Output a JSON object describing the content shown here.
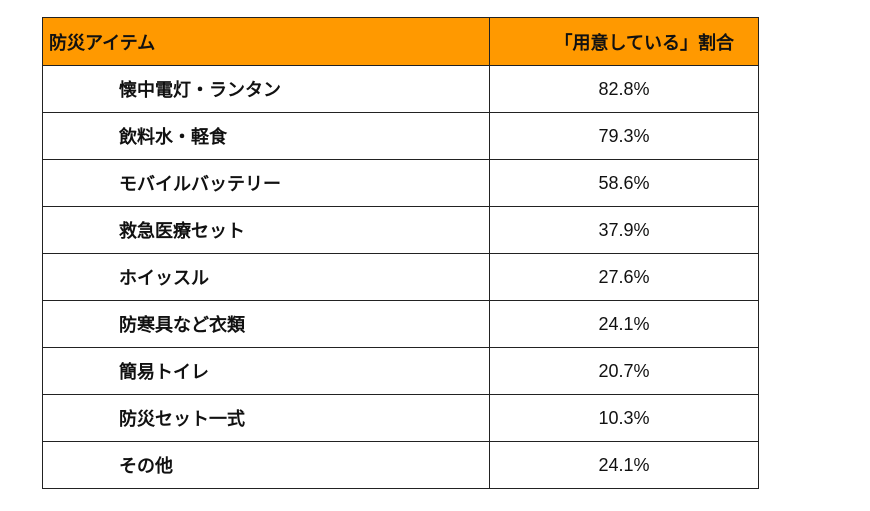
{
  "table": {
    "headers": [
      "防災アイテム",
      "「用意している」割合"
    ],
    "rows": [
      {
        "item": "懐中電灯・ランタン",
        "rate": "82.8%"
      },
      {
        "item": "飲料水・軽食",
        "rate": "79.3%"
      },
      {
        "item": "モバイルバッテリー",
        "rate": "58.6%"
      },
      {
        "item": "救急医療セット",
        "rate": "37.9%"
      },
      {
        "item": "ホイッスル",
        "rate": "27.6%"
      },
      {
        "item": "防寒具など衣類",
        "rate": "24.1%"
      },
      {
        "item": "簡易トイレ",
        "rate": "20.7%"
      },
      {
        "item": "防災セット一式",
        "rate": "10.3%"
      },
      {
        "item": "その他",
        "rate": "24.1%"
      }
    ]
  },
  "colors": {
    "header_bg": "#FF9900"
  }
}
